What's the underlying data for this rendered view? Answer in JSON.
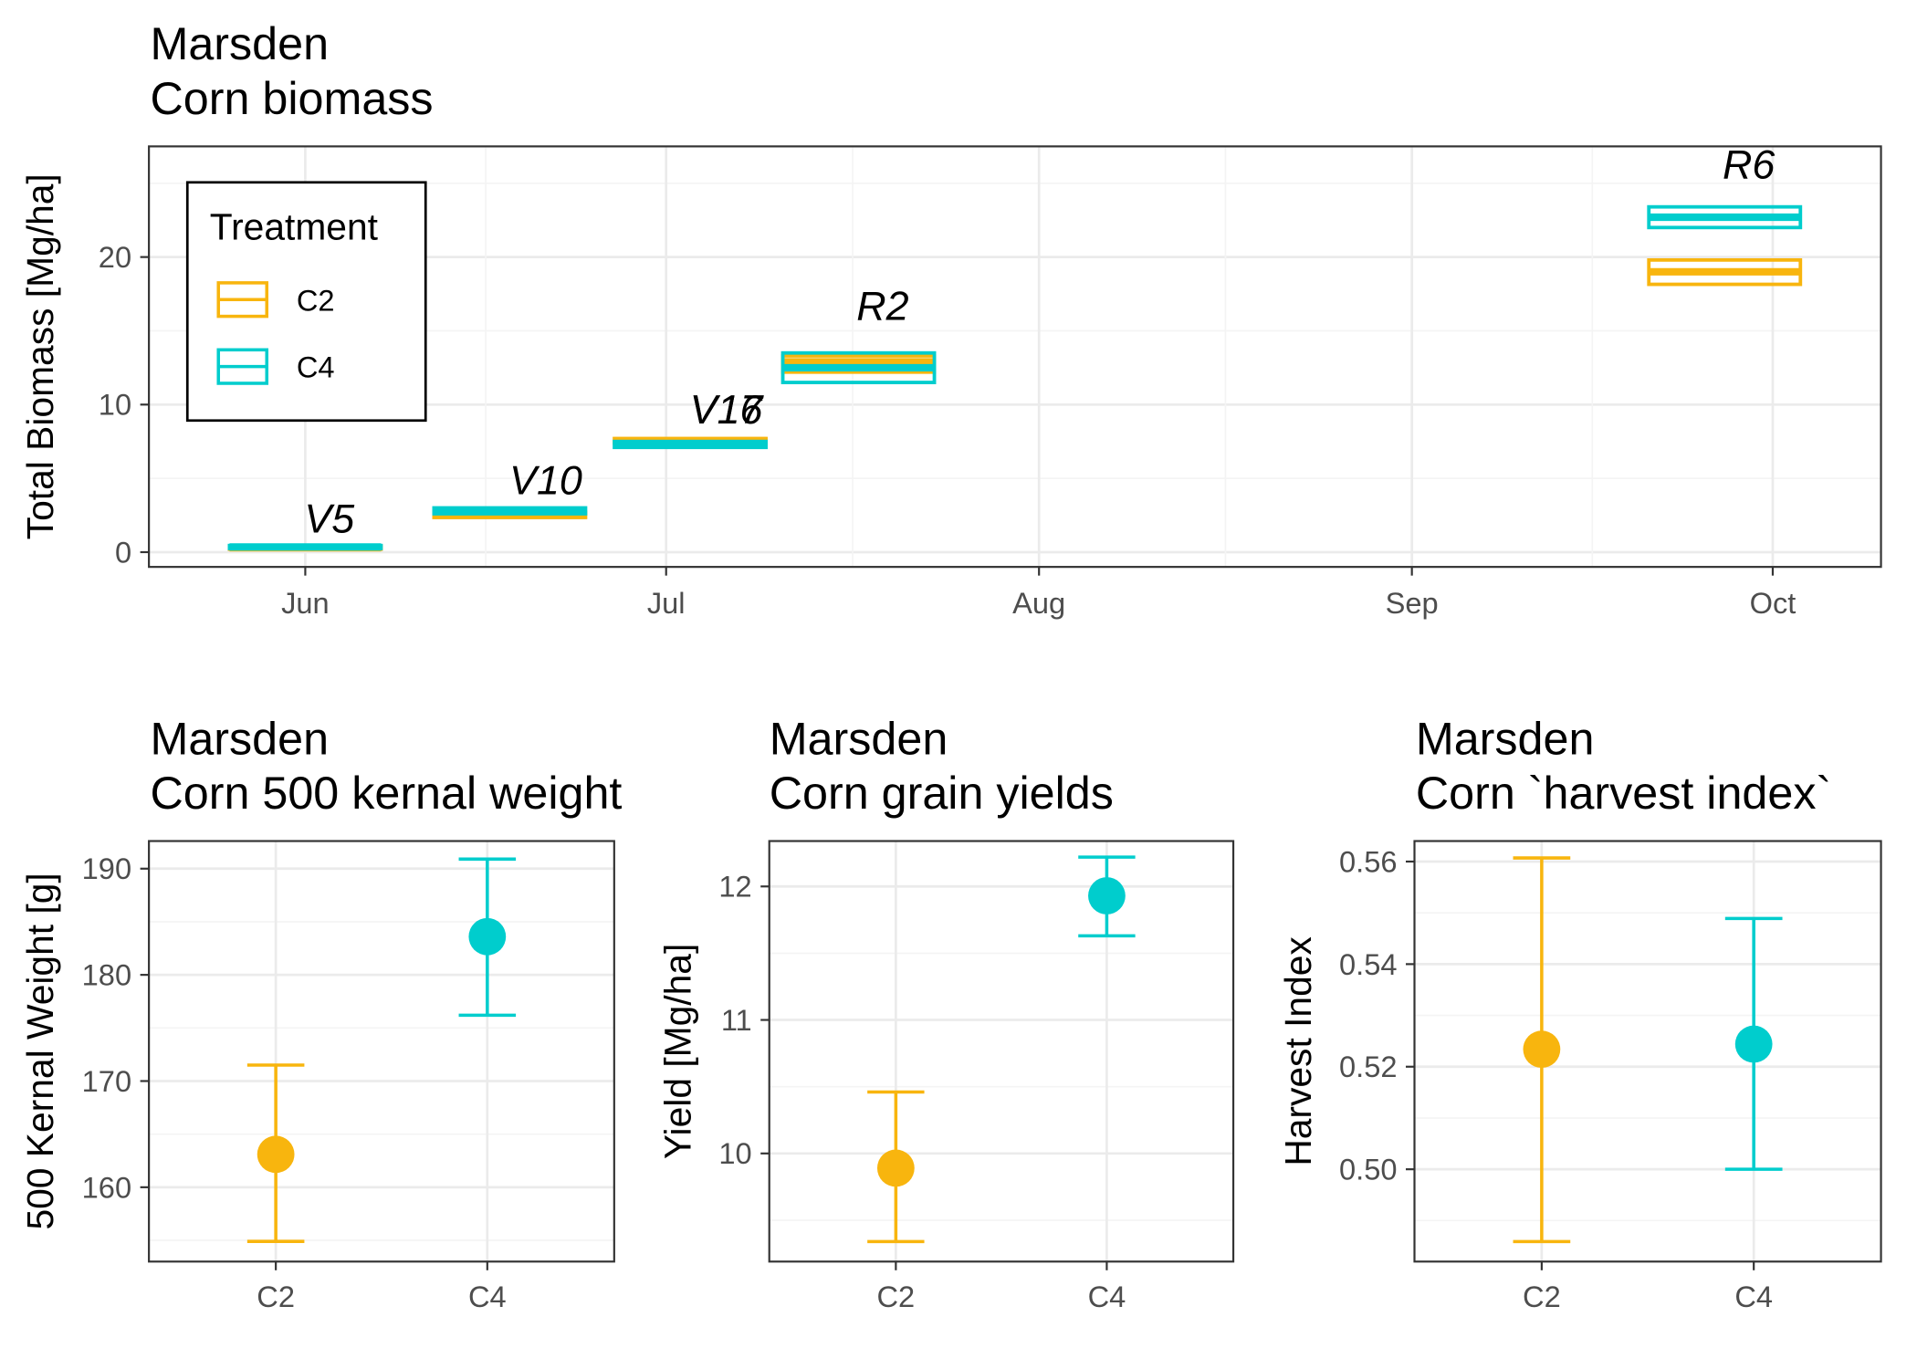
{
  "chart_data": [
    {
      "type": "bar",
      "title": "Marsden",
      "subtitle": "Corn biomass",
      "xlabel": "",
      "ylabel": "Total Biomass [Mg/ha]",
      "x_ticks": [
        {
          "label": "Jun",
          "x": "06-01"
        },
        {
          "label": "Jul",
          "x": "07-01"
        },
        {
          "label": "Aug",
          "x": "08-01"
        },
        {
          "label": "Sep",
          "x": "09-01"
        },
        {
          "label": "Oct",
          "x": "10-01"
        }
      ],
      "y_ticks": [
        {
          "label": "0",
          "y": 0
        },
        {
          "label": "10",
          "y": 10
        },
        {
          "label": "20",
          "y": 20
        }
      ],
      "xlim": [
        "05-19",
        "10-10"
      ],
      "ylim": [
        -1.0,
        27.5
      ],
      "grid": true,
      "legend": {
        "title": "Treatment",
        "placement": "top-left"
      },
      "series": [
        {
          "name": "C2",
          "color": "#F8B50E",
          "bars": [
            {
              "x": "06-01",
              "y": 0.3,
              "ymin": 0.2,
              "ymax": 0.4
            },
            {
              "x": "06-18",
              "y": 2.5,
              "ymin": 2.35,
              "ymax": 2.7
            },
            {
              "x": "07-03",
              "y": 7.55,
              "ymin": 7.4,
              "ymax": 7.7
            },
            {
              "x": "07-17",
              "y": 12.9,
              "ymin": 12.2,
              "ymax": 13.3
            },
            {
              "x": "09-27",
              "y": 19.0,
              "ymin": 18.15,
              "ymax": 19.8
            }
          ]
        },
        {
          "name": "C4",
          "color": "#00CDCD",
          "bars": [
            {
              "x": "06-01",
              "y": 0.35,
              "ymin": 0.25,
              "ymax": 0.45
            },
            {
              "x": "06-18",
              "y": 2.8,
              "ymin": 2.6,
              "ymax": 3.0
            },
            {
              "x": "07-03",
              "y": 7.3,
              "ymin": 7.1,
              "ymax": 7.5
            },
            {
              "x": "07-17",
              "y": 12.5,
              "ymin": 11.5,
              "ymax": 13.5
            },
            {
              "x": "09-27",
              "y": 22.7,
              "ymin": 22.0,
              "ymax": 23.4
            }
          ]
        }
      ],
      "annotations": [
        {
          "text": "V5",
          "x": "06-03",
          "y": 2.3
        },
        {
          "text": "V10",
          "x": "06-21",
          "y": 4.9
        },
        {
          "text": "V16",
          "x": "07-06",
          "y": 9.7
        },
        {
          "text": "V17",
          "x": "07-06",
          "y": 9.7
        },
        {
          "text": "R2",
          "x": "07-19",
          "y": 16.7
        },
        {
          "text": "R6",
          "x": "09-29",
          "y": 26.3
        }
      ]
    },
    {
      "type": "scatter",
      "title": "Marsden",
      "subtitle": "Corn 500 kernal weight",
      "xlabel": "",
      "ylabel": "500 Kernal Weight [g]",
      "categories": [
        "C2",
        "C4"
      ],
      "y_ticks": [
        {
          "label": "160",
          "y": 160
        },
        {
          "label": "170",
          "y": 170
        },
        {
          "label": "180",
          "y": 180
        },
        {
          "label": "190",
          "y": 190
        }
      ],
      "ylim": [
        153.0,
        192.6
      ],
      "grid": true,
      "points": [
        {
          "category": "C2",
          "y": 163.1,
          "ymin": 154.9,
          "ymax": 171.5,
          "color": "#F8B50E"
        },
        {
          "category": "C4",
          "y": 183.6,
          "ymin": 176.2,
          "ymax": 190.9,
          "color": "#00CDCD"
        }
      ]
    },
    {
      "type": "scatter",
      "title": "Marsden",
      "subtitle": "Corn grain yields",
      "xlabel": "",
      "ylabel": "Yield [Mg/ha]",
      "categories": [
        "C2",
        "C4"
      ],
      "y_ticks": [
        {
          "label": "10",
          "y": 10
        },
        {
          "label": "11",
          "y": 11
        },
        {
          "label": "12",
          "y": 12
        }
      ],
      "ylim": [
        9.19,
        12.34
      ],
      "grid": true,
      "points": [
        {
          "category": "C2",
          "y": 9.89,
          "ymin": 9.34,
          "ymax": 10.46,
          "color": "#F8B50E"
        },
        {
          "category": "C4",
          "y": 11.93,
          "ymin": 11.63,
          "ymax": 12.22,
          "color": "#00CDCD"
        }
      ]
    },
    {
      "type": "scatter",
      "title": "Marsden",
      "subtitle": "Corn `harvest index`",
      "xlabel": "",
      "ylabel": "Harvest Index",
      "categories": [
        "C2",
        "C4"
      ],
      "y_ticks": [
        {
          "label": "0.50",
          "y": 0.5
        },
        {
          "label": "0.52",
          "y": 0.52
        },
        {
          "label": "0.54",
          "y": 0.54
        },
        {
          "label": "0.56",
          "y": 0.56
        }
      ],
      "ylim": [
        0.482,
        0.564
      ],
      "grid": true,
      "points": [
        {
          "category": "C2",
          "y": 0.5234,
          "ymin": 0.4859,
          "ymax": 0.5607,
          "color": "#F8B50E"
        },
        {
          "category": "C4",
          "y": 0.5244,
          "ymin": 0.5,
          "ymax": 0.5489,
          "color": "#00CDCD"
        }
      ]
    }
  ]
}
